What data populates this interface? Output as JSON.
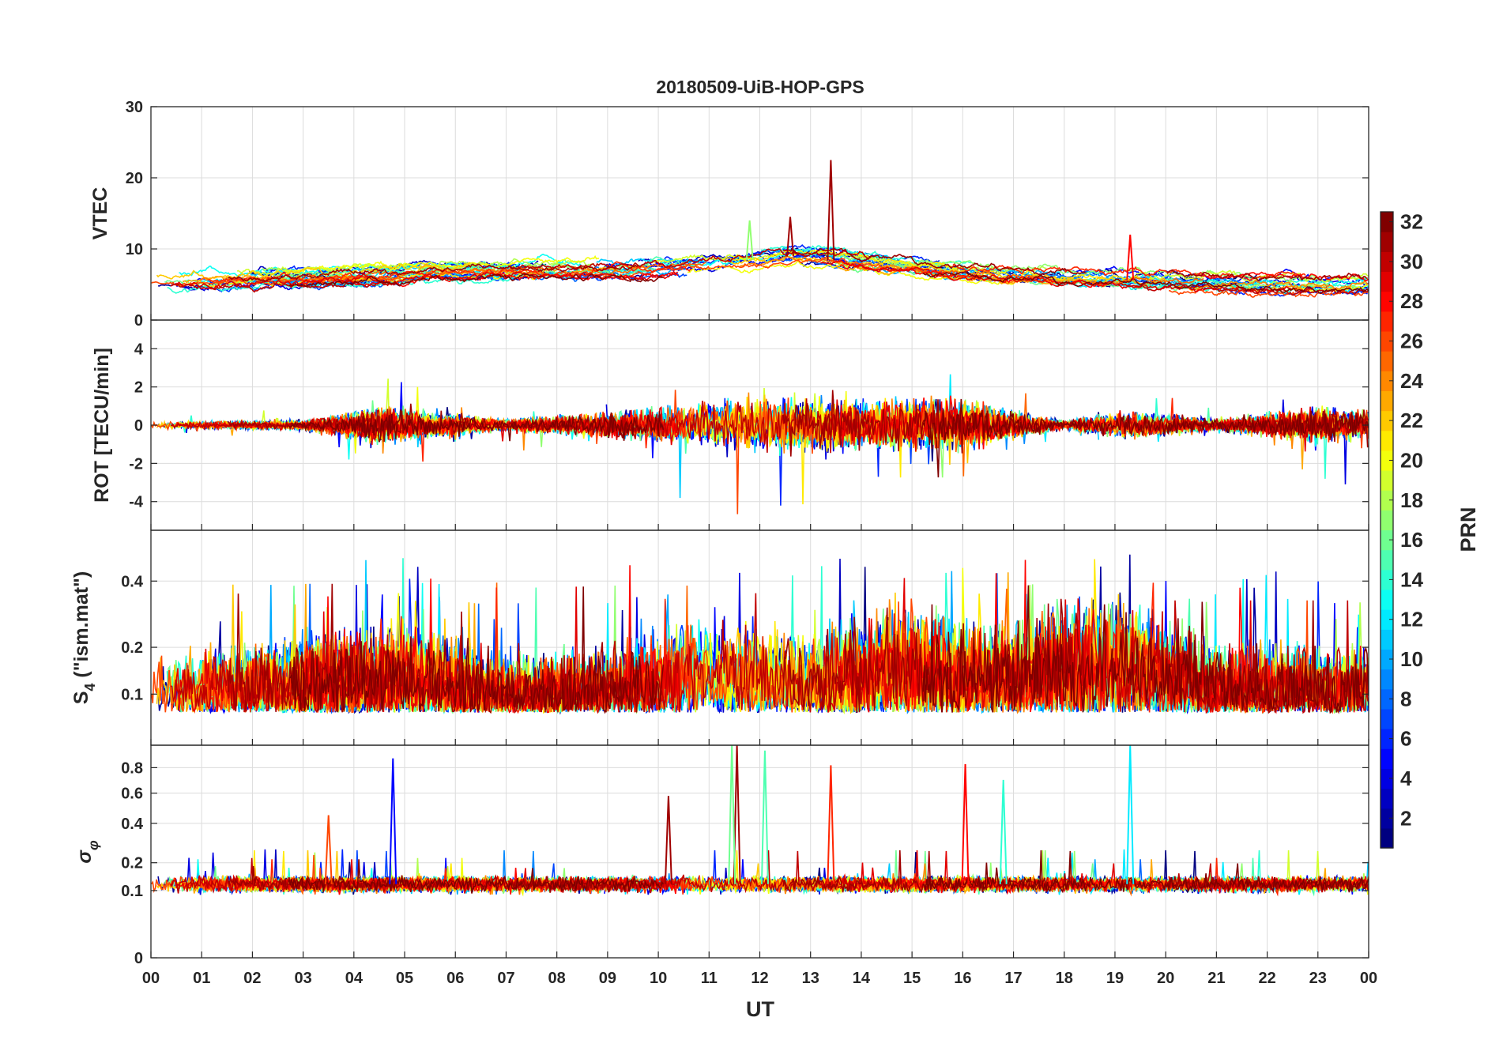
{
  "chart_data": {
    "type": "line",
    "title": "20180509-UiB-HOP-GPS",
    "xlabel": "UT",
    "x_ticks": [
      "00",
      "01",
      "02",
      "03",
      "04",
      "05",
      "06",
      "07",
      "08",
      "09",
      "10",
      "11",
      "12",
      "13",
      "14",
      "15",
      "16",
      "17",
      "18",
      "19",
      "20",
      "21",
      "22",
      "23",
      "00"
    ],
    "xlim": [
      0,
      24
    ],
    "panels": [
      {
        "ylabel": "VTEC",
        "ylim": [
          0,
          30
        ],
        "yticks": [
          0,
          10,
          20,
          30
        ],
        "ytick_labels": [
          "0",
          "10",
          "20",
          "30"
        ],
        "baseline_profile": [
          [
            0,
            5.6
          ],
          [
            3,
            6.0
          ],
          [
            6,
            7.0
          ],
          [
            9,
            7.2
          ],
          [
            11,
            7.8
          ],
          [
            12.5,
            9.0
          ],
          [
            14,
            8.0
          ],
          [
            16,
            6.5
          ],
          [
            18,
            5.8
          ],
          [
            20,
            5.5
          ],
          [
            22,
            5.0
          ],
          [
            24,
            5.0
          ]
        ],
        "notable_peaks": [
          {
            "time_h": 12.6,
            "value": 14.5,
            "prn": 31
          },
          {
            "time_h": 13.4,
            "value": 22.5,
            "prn": 31
          },
          {
            "time_h": 11.8,
            "value": 14.0,
            "prn": 17
          },
          {
            "time_h": 19.3,
            "value": 12.0,
            "prn": 28
          }
        ]
      },
      {
        "ylabel": "ROT [TECU/min]",
        "ylim": [
          -5.5,
          5.5
        ],
        "yticks": [
          -4,
          -2,
          0,
          2,
          4
        ],
        "ytick_labels": [
          "-4",
          "-2",
          "0",
          "2",
          "4"
        ],
        "activity_profile": [
          [
            0,
            0.25
          ],
          [
            3,
            0.3
          ],
          [
            4.5,
            1.3
          ],
          [
            5.5,
            0.9
          ],
          [
            7,
            0.4
          ],
          [
            9,
            0.9
          ],
          [
            11,
            1.6
          ],
          [
            12.5,
            1.9
          ],
          [
            14,
            1.7
          ],
          [
            16,
            1.8
          ],
          [
            17,
            1.0
          ],
          [
            18,
            0.3
          ],
          [
            19.3,
            1.0
          ],
          [
            21,
            0.4
          ],
          [
            23,
            1.3
          ],
          [
            24,
            1.0
          ]
        ]
      },
      {
        "ylabel_main": "S",
        "ylabel_sub": "4",
        "ylabel_rest": " (\"ism.mat\")",
        "ylim": [
          0.03,
          0.6
        ],
        "yticks": [
          0.1,
          0.2,
          0.4
        ],
        "ytick_labels": [
          "0.1",
          "0.2",
          "0.4"
        ],
        "baseline": 0.07,
        "activity_profile": [
          [
            0,
            0.12
          ],
          [
            3,
            0.16
          ],
          [
            5,
            0.18
          ],
          [
            7,
            0.12
          ],
          [
            9,
            0.14
          ],
          [
            11,
            0.2
          ],
          [
            13,
            0.16
          ],
          [
            15,
            0.22
          ],
          [
            16.5,
            0.18
          ],
          [
            19,
            0.24
          ],
          [
            21,
            0.14
          ],
          [
            24,
            0.14
          ]
        ]
      },
      {
        "ylabel_main": "σ",
        "ylabel_sub": "φ",
        "ylim": [
          0,
          1
        ],
        "yticks": [
          0,
          0.1,
          0.2,
          0.4,
          0.6,
          0.8
        ],
        "ytick_labels": [
          "0",
          "0.1",
          "0.2",
          "0.4",
          "0.6",
          "0.8"
        ],
        "baseline": 0.12,
        "notable_peaks": [
          {
            "time_h": 4.77,
            "value": 0.88,
            "prn": 5
          },
          {
            "time_h": 11.55,
            "value": 1.0,
            "prn": 31
          },
          {
            "time_h": 11.45,
            "value": 1.0,
            "prn": 16
          },
          {
            "time_h": 12.1,
            "value": 0.95,
            "prn": 15
          },
          {
            "time_h": 13.4,
            "value": 0.82,
            "prn": 27
          },
          {
            "time_h": 16.05,
            "value": 0.83,
            "prn": 28
          },
          {
            "time_h": 16.8,
            "value": 0.7,
            "prn": 14
          },
          {
            "time_h": 19.3,
            "value": 1.0,
            "prn": 12
          },
          {
            "time_h": 10.2,
            "value": 0.58,
            "prn": 31
          },
          {
            "time_h": 3.5,
            "value": 0.45,
            "prn": 26
          }
        ]
      }
    ],
    "colorbar": {
      "label": "PRN",
      "colormap": "jet",
      "range": [
        1,
        32
      ],
      "ticks": [
        2,
        4,
        6,
        8,
        10,
        12,
        14,
        16,
        18,
        20,
        22,
        24,
        26,
        28,
        30,
        32
      ]
    },
    "series_count": 32
  }
}
